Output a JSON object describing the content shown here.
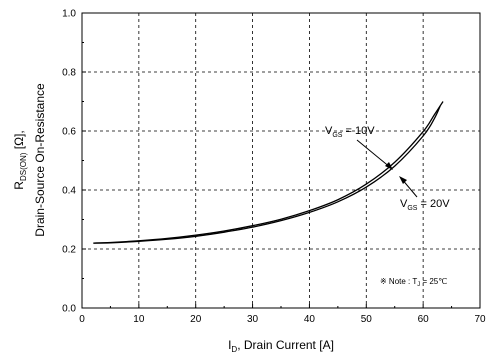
{
  "chart_data": {
    "type": "line",
    "xlabel_main": "I",
    "xlabel_sub": "D",
    "xlabel_rest": ", Drain Current [A]",
    "ylabel_line1_main": "R",
    "ylabel_line1_sub": "DS(ON)",
    "ylabel_line1_rest": " [Ω],",
    "ylabel_line2": "Drain-Source On-Resistance",
    "xlim": [
      0,
      70
    ],
    "ylim": [
      0.0,
      1.0
    ],
    "xticks": [
      "0",
      "10",
      "20",
      "30",
      "40",
      "50",
      "60",
      "70"
    ],
    "yticks": [
      "0.0",
      "0.2",
      "0.4",
      "0.6",
      "0.8",
      "1.0"
    ],
    "grid": "dashed",
    "series": [
      {
        "name": "VGS = 10V",
        "x": [
          2,
          5,
          10,
          15,
          20,
          25,
          30,
          35,
          40,
          45,
          50,
          55,
          60,
          62,
          63.5
        ],
        "y": [
          0.22,
          0.222,
          0.228,
          0.236,
          0.247,
          0.261,
          0.279,
          0.301,
          0.33,
          0.367,
          0.42,
          0.494,
          0.598,
          0.656,
          0.7
        ]
      },
      {
        "name": "VGS = 20V",
        "x": [
          2,
          5,
          10,
          15,
          20,
          25,
          30,
          35,
          40,
          45,
          50,
          55,
          60,
          62,
          63
        ],
        "y": [
          0.22,
          0.221,
          0.226,
          0.233,
          0.243,
          0.257,
          0.274,
          0.296,
          0.324,
          0.36,
          0.41,
          0.481,
          0.583,
          0.643,
          0.685
        ]
      }
    ],
    "annotations": [
      {
        "main": "V",
        "sub": "GS",
        "rest": " = 10V"
      },
      {
        "main": "V",
        "sub": "GS",
        "rest": " = 20V"
      }
    ],
    "note": {
      "prefix": "※ Note : T",
      "sub": "J",
      "rest": " = 25℃"
    }
  }
}
